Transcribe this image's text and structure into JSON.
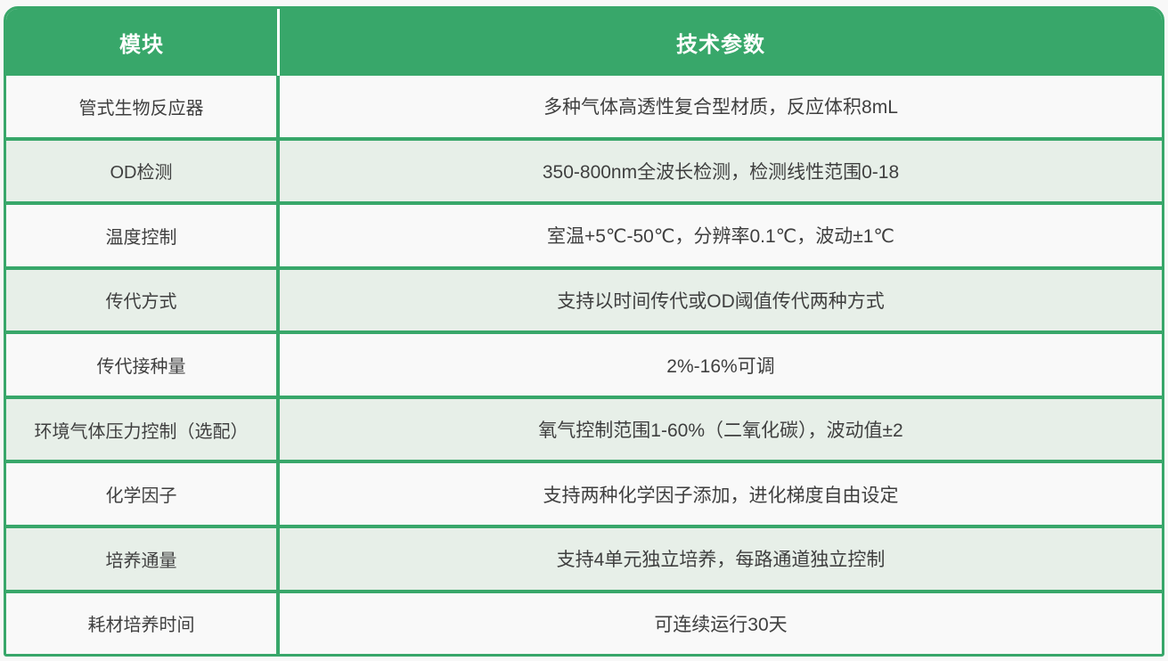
{
  "colors": {
    "green": "#38a76a",
    "row-tint": "#e7efe8",
    "row-white": "#f9f9f9",
    "text": "#3f3f3f",
    "header-text": "#ffffff",
    "page-bg": "#f8f8f8"
  },
  "table": {
    "headers": {
      "module": "模块",
      "params": "技术参数"
    },
    "rows": [
      {
        "module": "管式生物反应器",
        "params": "多种气体高透性复合型材质，反应体积8mL"
      },
      {
        "module": "OD检测",
        "params": "350-800nm全波长检测，检测线性范围0-18"
      },
      {
        "module": "温度控制",
        "params": "室温+5℃-50℃，分辨率0.1℃，波动±1℃"
      },
      {
        "module": "传代方式",
        "params": "支持以时间传代或OD阈值传代两种方式"
      },
      {
        "module": "传代接种量",
        "params": "2%-16%可调"
      },
      {
        "module": "环境气体压力控制（选配）",
        "params": "氧气控制范围1-60%（二氧化碳），波动值±2"
      },
      {
        "module": "化学因子",
        "params": "支持两种化学因子添加，进化梯度自由设定"
      },
      {
        "module": "培养通量",
        "params": "支持4单元独立培养，每路通道独立控制"
      },
      {
        "module": "耗材培养时间",
        "params": "可连续运行30天"
      }
    ]
  }
}
